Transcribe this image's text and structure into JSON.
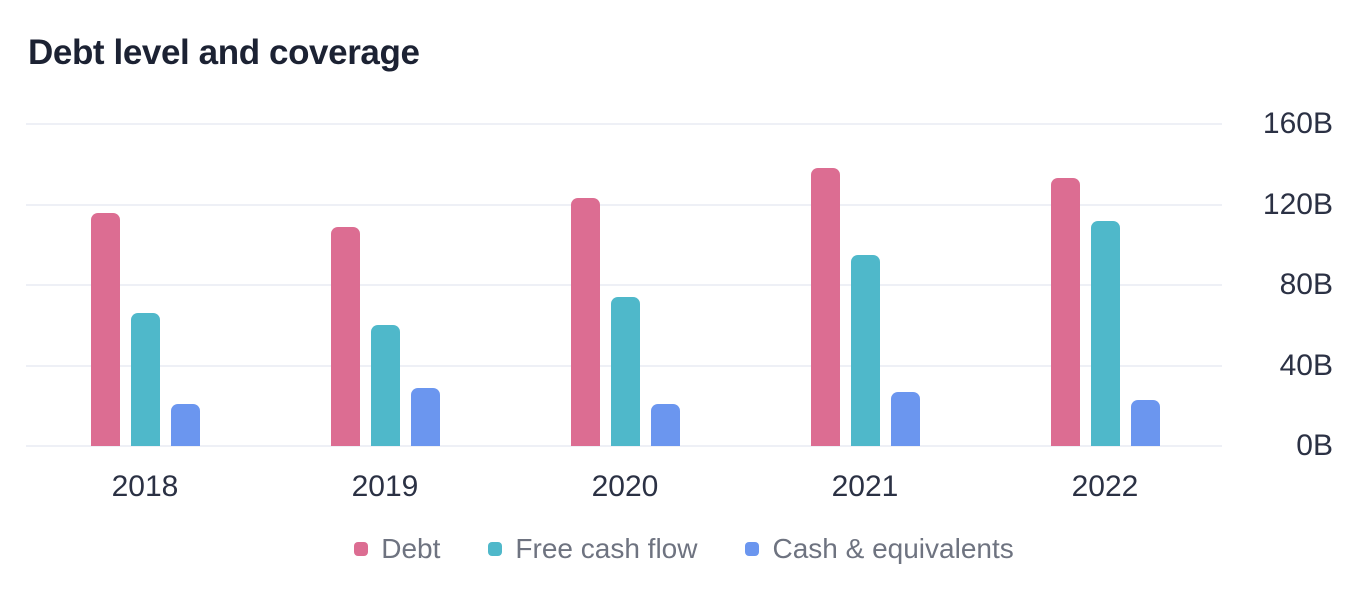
{
  "chart": {
    "title": "Debt level and coverage"
  },
  "chart_data": {
    "type": "bar",
    "title": "Debt level and coverage",
    "categories": [
      "2018",
      "2019",
      "2020",
      "2021",
      "2022"
    ],
    "series": [
      {
        "name": "Debt",
        "color": "#dc6d92",
        "values": [
          116,
          109,
          123,
          138,
          133
        ]
      },
      {
        "name": "Free cash flow",
        "color": "#4fb8ca",
        "values": [
          66,
          60,
          74,
          95,
          112
        ]
      },
      {
        "name": "Cash & equivalents",
        "color": "#6b96ef",
        "values": [
          21,
          29,
          21,
          27,
          23
        ]
      }
    ],
    "unit": "B",
    "ylim": [
      0,
      160
    ],
    "yticks": [
      "160B",
      "120B",
      "80B",
      "40B",
      "0B"
    ],
    "grid": true,
    "y_axis_side": "right",
    "legend_position": "bottom"
  }
}
